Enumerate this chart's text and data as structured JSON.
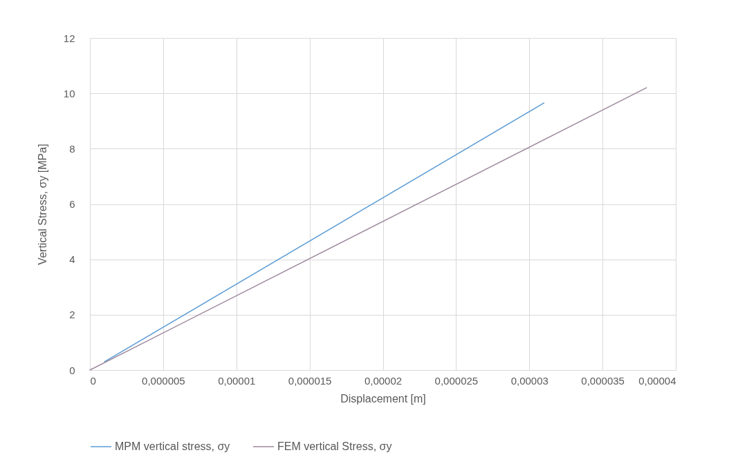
{
  "chart_data": {
    "type": "line",
    "xlabel": "Displacement [m]",
    "ylabel": "Vertical Stress, σy [MPa]",
    "xlim": [
      0,
      4e-05
    ],
    "xticks": [
      0,
      {
        "value": 5e-06,
        "label": "0,000005"
      },
      {
        "value": 1e-05,
        "label": "0,00001"
      },
      {
        "value": 1.5e-05,
        "label": "0,000015"
      },
      {
        "value": 2e-05,
        "label": "0,00002"
      },
      {
        "value": 2.5e-05,
        "label": "0,000025"
      },
      {
        "value": 3e-05,
        "label": "0,00003"
      },
      {
        "value": 3.5e-05,
        "label": "0,000035"
      },
      {
        "value": 4e-05,
        "label": "0,00004"
      }
    ],
    "ylim": [
      0,
      12
    ],
    "yticks": [
      0,
      2,
      4,
      6,
      8,
      10,
      12
    ],
    "grid": true,
    "legend": "bottom",
    "marker": "none",
    "line_style": "solid",
    "series": [
      {
        "name": "MPM vertical stress, σy",
        "color": "#5b9bd5",
        "x": [
          1e-06,
          3.1e-05
        ],
        "values": [
          0.3,
          9.65
        ]
      },
      {
        "name": "FEM vertical Stress, σy",
        "color": "#9e8a9e",
        "x": [
          0,
          3.8e-05
        ],
        "values": [
          0,
          10.2
        ]
      }
    ]
  }
}
